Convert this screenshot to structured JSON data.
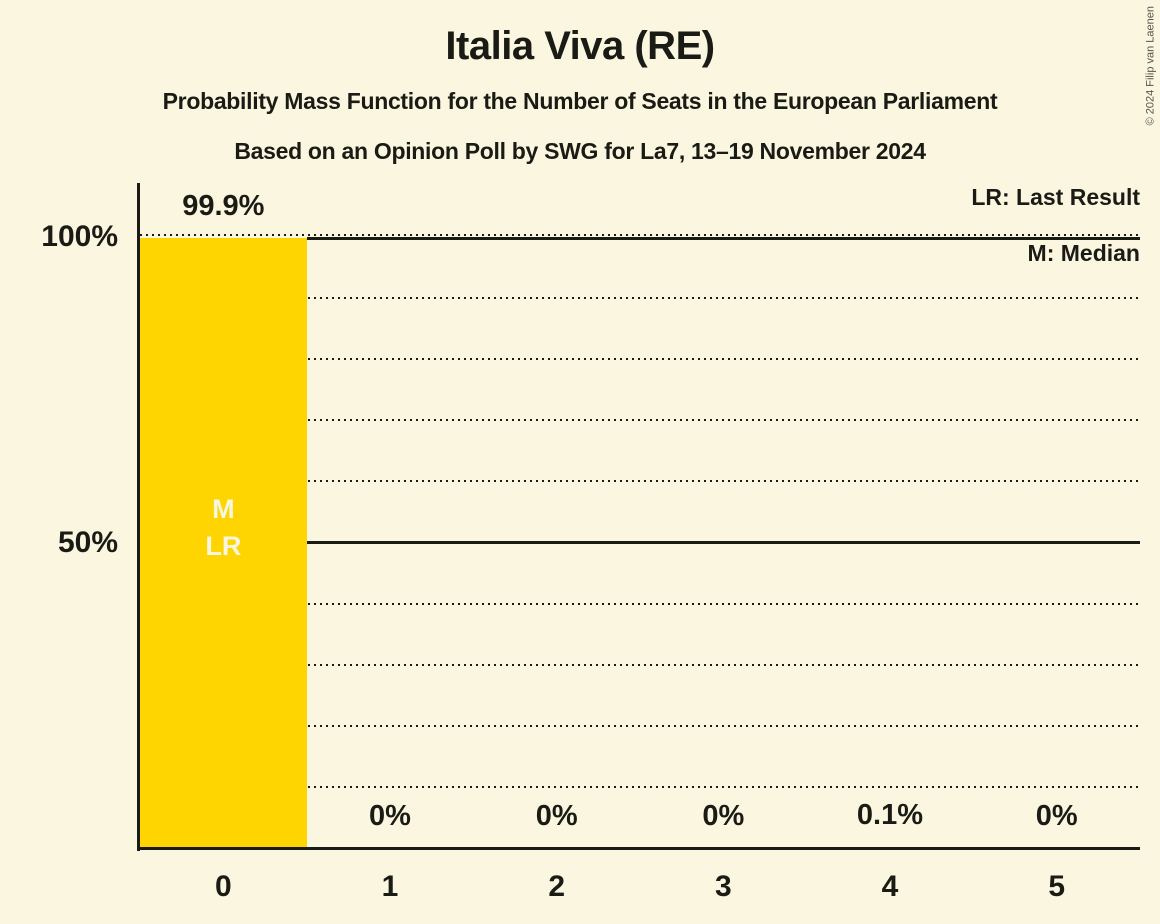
{
  "header": {
    "title": "Italia Viva (RE)",
    "subtitle": "Probability Mass Function for the Number of Seats in the European Parliament",
    "poll_line": "Based on an Opinion Poll by SWG for La7, 13–19 November 2024"
  },
  "legend": {
    "last_result": "LR: Last Result",
    "median": "M: Median"
  },
  "copyright": "© 2024 Filip van Laenen",
  "colors": {
    "background": "#FBF6DF",
    "bar": "#FED500",
    "ink": "#1B1B15",
    "bar_label": "#FBF6DF"
  },
  "chart_data": {
    "type": "bar",
    "title": "Italia Viva (RE)",
    "categories": [
      "0",
      "1",
      "2",
      "3",
      "4",
      "5"
    ],
    "values": [
      99.9,
      0,
      0,
      0,
      0.1,
      0
    ],
    "value_labels": [
      "99.9%",
      "0%",
      "0%",
      "0%",
      "0.1%",
      "0%"
    ],
    "bar_annotations": {
      "0": [
        "M",
        "LR"
      ]
    },
    "xlabel": "",
    "ylabel": "",
    "ylim": [
      0,
      100
    ],
    "y_tick_labels": [
      "100%",
      "50%"
    ],
    "y_gridlines_pct": [
      10,
      20,
      30,
      40,
      50,
      60,
      70,
      80,
      90,
      100
    ],
    "solid_gridlines_pct": [
      50,
      100
    ],
    "gridline_style": "horizontal-dotted",
    "legend_position": "top-right"
  }
}
